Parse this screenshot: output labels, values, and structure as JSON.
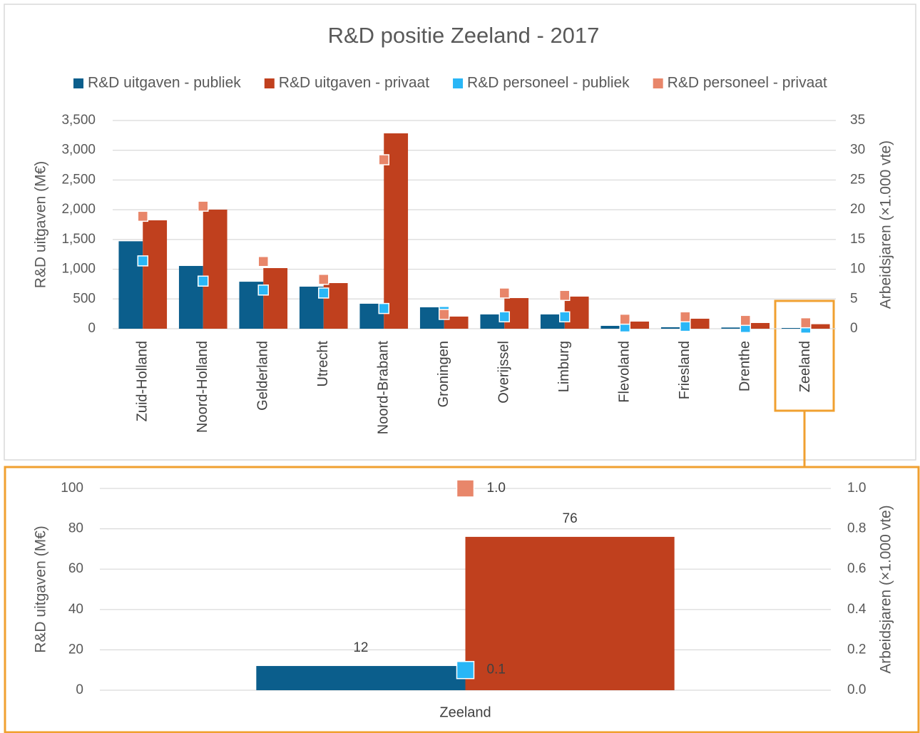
{
  "chart_data": [
    {
      "type": "bar",
      "title": "R&D positie Zeeland - 2017",
      "y_label": "R&D uitgaven (M€)",
      "y2_label": "Arbeidsjaren (×1.000 vte)",
      "categories": [
        "Zuid-Holland",
        "Noord-Holland",
        "Gelderland",
        "Utrecht",
        "Noord-Brabant",
        "Groningen",
        "Overijssel",
        "Limburg",
        "Flevoland",
        "Friesland",
        "Drenthe",
        "Zeeland"
      ],
      "series": [
        {
          "name": "R&D uitgaven - publiek",
          "type": "bar",
          "color": "#0b5e8c",
          "values": [
            1470,
            1055,
            790,
            707,
            420,
            360,
            240,
            240,
            48,
            24,
            20,
            12
          ]
        },
        {
          "name": "R&D uitgaven - privaat",
          "type": "bar",
          "color": "#c0401e",
          "values": [
            1822,
            2002,
            1019,
            767,
            3284,
            204,
            515,
            540,
            120,
            168,
            96,
            76
          ]
        },
        {
          "name": "R&D personeel - publiek",
          "type": "scatter",
          "axis": "y2",
          "color": "#29b6f6",
          "values": [
            11.4,
            8.0,
            6.5,
            6.0,
            3.4,
            2.9,
            2.0,
            2.0,
            0.3,
            0.4,
            0.2,
            0.1
          ]
        },
        {
          "name": "R&D personeel - privaat",
          "type": "scatter",
          "axis": "y2",
          "color": "#e8866a",
          "values": [
            18.9,
            20.6,
            11.3,
            8.3,
            28.4,
            2.4,
            6.0,
            5.6,
            1.6,
            2.0,
            1.4,
            1.0
          ]
        }
      ],
      "ylim": [
        0,
        3500
      ],
      "yticks": [
        0,
        500,
        {
          "value": 1000,
          "label": "1,000"
        },
        {
          "value": 1500,
          "label": "1,500"
        },
        {
          "value": 2000,
          "label": "2,000"
        },
        {
          "value": 2500,
          "label": "2,500"
        },
        {
          "value": 3000,
          "label": "3,000"
        },
        {
          "value": 3500,
          "label": "3,500"
        }
      ],
      "y2lim": [
        0,
        35
      ],
      "y2ticks": [
        0,
        5,
        10,
        15,
        20,
        25,
        30,
        35
      ],
      "grid": true,
      "legend": "top"
    },
    {
      "type": "bar",
      "y_label": "R&D uitgaven (M€)",
      "y2_label": "Arbeidsjaren (×1.000 vte)",
      "categories": [
        "Zeeland"
      ],
      "series": [
        {
          "name": "R&D uitgaven - publiek",
          "type": "bar",
          "color": "#0b5e8c",
          "values": [
            12
          ]
        },
        {
          "name": "R&D uitgaven - privaat",
          "type": "bar",
          "color": "#c0401e",
          "values": [
            76
          ]
        },
        {
          "name": "R&D personeel - publiek",
          "type": "scatter",
          "axis": "y2",
          "color": "#29b6f6",
          "values": [
            0.1
          ],
          "value_labels": [
            "0.1"
          ]
        },
        {
          "name": "R&D personeel - privaat",
          "type": "scatter",
          "axis": "y2",
          "color": "#e8866a",
          "values": [
            1.0
          ],
          "value_labels": [
            "1.0"
          ]
        }
      ],
      "ylim": [
        0,
        100
      ],
      "yticks": [
        0,
        20,
        40,
        60,
        80,
        100
      ],
      "y2lim": [
        0,
        1
      ],
      "y2ticks": [
        {
          "value": 0,
          "label": "0.0"
        },
        {
          "value": 0.2,
          "label": "0.2"
        },
        {
          "value": 0.4,
          "label": "0.4"
        },
        {
          "value": 0.6,
          "label": "0.6"
        },
        {
          "value": 0.8,
          "label": "0.8"
        },
        {
          "value": 1,
          "label": "1.0"
        }
      ],
      "grid": true,
      "show_value_labels": true
    }
  ]
}
